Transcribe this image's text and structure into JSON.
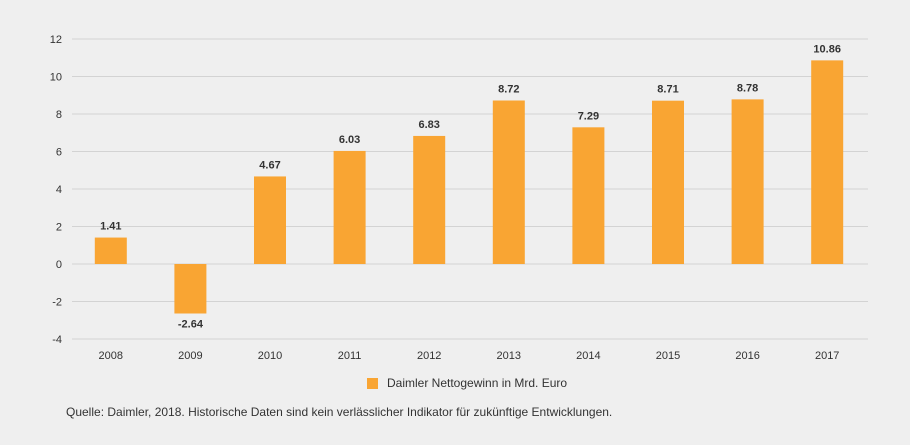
{
  "chart_data": {
    "type": "bar",
    "categories": [
      "2008",
      "2009",
      "2010",
      "2011",
      "2012",
      "2013",
      "2014",
      "2015",
      "2016",
      "2017"
    ],
    "series": [
      {
        "name": "Daimler Nettogewinn in Mrd. Euro",
        "values": [
          1.41,
          -2.64,
          4.67,
          6.03,
          6.83,
          8.72,
          7.29,
          8.71,
          8.78,
          10.86
        ],
        "labels": [
          "1.41",
          "-2.64",
          "4.67",
          "6.03",
          "6.83",
          "8.72",
          "7.29",
          "8.71",
          "8.78",
          "10.86"
        ],
        "color": "#f9a533"
      }
    ],
    "yticks": [
      -4,
      -2,
      0,
      2,
      4,
      6,
      8,
      10,
      12
    ],
    "ylim": [
      -4,
      12
    ],
    "grid": true,
    "title": "",
    "xlabel": "",
    "ylabel": "",
    "legend_position": "bottom-center"
  },
  "legend": {
    "label": "Daimler Nettogewinn in Mrd. Euro",
    "color": "#f9a533"
  },
  "source": "Quelle: Daimler, 2018. Historische Daten sind kein verlässlicher Indikator für zukünftige Entwicklungen.",
  "colors": {
    "grid": "#d3d3d3",
    "text": "#333333",
    "background": "#efefef"
  }
}
